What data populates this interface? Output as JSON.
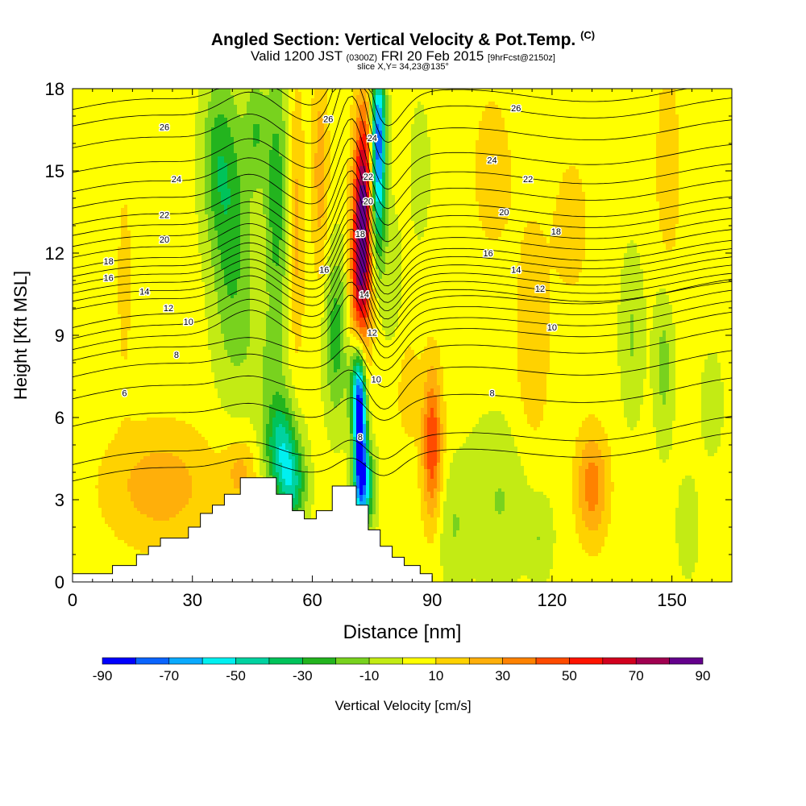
{
  "title": {
    "main": "Angled Section: Vertical Velocity & Pot.Temp.",
    "main_unit": "(C)",
    "valid_prefix": "Valid 1200 JST",
    "valid_zulu": "(0300Z)",
    "valid_date": "FRI 20 Feb 2015",
    "forecast": "[9hrFcst@2150z]",
    "slice": "slice X,Y= 34,23@135°"
  },
  "chart_data": {
    "type": "heatmap",
    "xlabel": "Distance [nm]",
    "ylabel": "Height [Kft MSL]",
    "xlim": [
      0,
      165
    ],
    "ylim": [
      0,
      18
    ],
    "x_ticks": [
      "0",
      "30",
      "60",
      "90",
      "120",
      "150"
    ],
    "y_ticks": [
      "0",
      "3",
      "6",
      "9",
      "12",
      "15",
      "18"
    ],
    "colorbar": {
      "label": "Vertical Velocity [cm/s]",
      "ticks": [
        "-90",
        "-70",
        "-50",
        "-30",
        "-10",
        "10",
        "30",
        "50",
        "70",
        "90"
      ],
      "levels": [
        -90,
        -80,
        -70,
        -60,
        -50,
        -40,
        -30,
        -20,
        -10,
        0,
        10,
        20,
        30,
        40,
        50,
        60,
        70,
        80,
        90
      ],
      "colors": [
        "#0000ff",
        "#0a64ff",
        "#0aaaff",
        "#00f0f0",
        "#00d2a0",
        "#00c35a",
        "#23b41e",
        "#78d21e",
        "#c3eb14",
        "#ffff00",
        "#ffd200",
        "#ffaf0a",
        "#ff8200",
        "#ff4b00",
        "#ff1400",
        "#d2001e",
        "#a00050",
        "#64008c"
      ]
    },
    "contour_field": "Potential Temperature (C)",
    "contour_labels": [
      "6",
      "8",
      "10",
      "12",
      "14",
      "16",
      "18",
      "20",
      "22",
      "24",
      "26"
    ],
    "terrain": [
      [
        0,
        0.3
      ],
      [
        10,
        0.3
      ],
      [
        10,
        0.6
      ],
      [
        16,
        0.6
      ],
      [
        16,
        1.0
      ],
      [
        19,
        1.0
      ],
      [
        19,
        1.3
      ],
      [
        22,
        1.3
      ],
      [
        22,
        1.6
      ],
      [
        26,
        1.6
      ],
      [
        29,
        1.6
      ],
      [
        29,
        2.0
      ],
      [
        32,
        2.0
      ],
      [
        32,
        2.5
      ],
      [
        35,
        2.5
      ],
      [
        35,
        2.8
      ],
      [
        38,
        2.8
      ],
      [
        38,
        3.2
      ],
      [
        42,
        3.2
      ],
      [
        42,
        3.8
      ],
      [
        48,
        3.8
      ],
      [
        51,
        3.8
      ],
      [
        51,
        3.2
      ],
      [
        55,
        3.2
      ],
      [
        55,
        2.6
      ],
      [
        58,
        2.6
      ],
      [
        58,
        2.3
      ],
      [
        61,
        2.3
      ],
      [
        61,
        2.6
      ],
      [
        65,
        2.6
      ],
      [
        65,
        3.5
      ],
      [
        71,
        3.5
      ],
      [
        71,
        2.8
      ],
      [
        74,
        2.8
      ],
      [
        74,
        1.9
      ],
      [
        77,
        1.9
      ],
      [
        77,
        1.3
      ],
      [
        80,
        1.3
      ],
      [
        80,
        0.9
      ],
      [
        83,
        0.9
      ],
      [
        83,
        0.6
      ],
      [
        87,
        0.6
      ],
      [
        87,
        0.3
      ],
      [
        90,
        0.3
      ],
      [
        90,
        0.0
      ],
      [
        165,
        0.0
      ]
    ],
    "velocity_features": [
      {
        "x": 73,
        "z": 14,
        "w": 2.5,
        "h": 3.5,
        "value": 75
      },
      {
        "x": 72,
        "z": 11,
        "w": 2.5,
        "h": 3,
        "value": 45
      },
      {
        "x": 71,
        "z": 8.5,
        "w": 2.5,
        "h": 2,
        "value": 25
      },
      {
        "x": 76.5,
        "z": 16.5,
        "w": 1.8,
        "h": 2.5,
        "value": -75
      },
      {
        "x": 76,
        "z": 13.5,
        "w": 2.2,
        "h": 2.5,
        "value": -45
      },
      {
        "x": 72,
        "z": 5.5,
        "w": 1.5,
        "h": 2.5,
        "value": -85
      },
      {
        "x": 71,
        "z": 7.5,
        "w": 2,
        "h": 2,
        "value": -55
      },
      {
        "x": 73,
        "z": 3.5,
        "w": 2.5,
        "h": 1.5,
        "value": -55
      },
      {
        "x": 52,
        "z": 5,
        "w": 4,
        "h": 1.8,
        "value": -45
      },
      {
        "x": 55,
        "z": 3.5,
        "w": 3.5,
        "h": 1.5,
        "value": -40
      },
      {
        "x": 66,
        "z": 9,
        "w": 3,
        "h": 3,
        "value": -30
      },
      {
        "x": 40,
        "z": 12.5,
        "w": 5,
        "h": 5,
        "value": -28
      },
      {
        "x": 36,
        "z": 15.5,
        "w": 4,
        "h": 3,
        "value": -22
      },
      {
        "x": 51,
        "z": 14,
        "w": 3,
        "h": 5,
        "value": -30
      },
      {
        "x": 46,
        "z": 16.5,
        "w": 2.5,
        "h": 2,
        "value": -20
      },
      {
        "x": 62,
        "z": 15,
        "w": 2,
        "h": 4,
        "value": 22
      },
      {
        "x": 56,
        "z": 13,
        "w": 2,
        "h": 5,
        "value": 20
      },
      {
        "x": 48,
        "z": 8,
        "w": 6,
        "h": 2,
        "value": -10
      },
      {
        "x": 90,
        "z": 5,
        "w": 2.5,
        "h": 2.8,
        "value": 45
      },
      {
        "x": 84,
        "z": 7,
        "w": 3,
        "h": 2,
        "value": 12
      },
      {
        "x": 130,
        "z": 3.5,
        "w": 4,
        "h": 2,
        "value": 32
      },
      {
        "x": 22,
        "z": 3.5,
        "w": 14,
        "h": 2.2,
        "value": 22
      },
      {
        "x": 42,
        "z": 4,
        "w": 4,
        "h": 1.2,
        "value": 18
      },
      {
        "x": 108,
        "z": 3,
        "w": 10,
        "h": 3,
        "value": -15
      },
      {
        "x": 95,
        "z": 2,
        "w": 4,
        "h": 2,
        "value": -12
      },
      {
        "x": 115,
        "z": 8,
        "w": 5,
        "h": 6,
        "value": 12
      },
      {
        "x": 140,
        "z": 9,
        "w": 3,
        "h": 3,
        "value": -15
      },
      {
        "x": 149,
        "z": 15,
        "w": 3,
        "h": 4,
        "value": 14
      },
      {
        "x": 148,
        "z": 8,
        "w": 2.5,
        "h": 3,
        "value": -18
      },
      {
        "x": 160,
        "z": 6.5,
        "w": 3,
        "h": 2,
        "value": -10
      },
      {
        "x": 13,
        "z": 11,
        "w": 2,
        "h": 4,
        "value": 10
      },
      {
        "x": 105,
        "z": 15,
        "w": 5,
        "h": 3,
        "value": 12
      },
      {
        "x": 125,
        "z": 13,
        "w": 5,
        "h": 3,
        "value": 10
      },
      {
        "x": 80,
        "z": 11,
        "w": 3,
        "h": 3,
        "value": -8
      },
      {
        "x": 87,
        "z": 15,
        "w": 3,
        "h": 3,
        "value": -8
      },
      {
        "x": 154,
        "z": 2,
        "w": 3,
        "h": 2,
        "value": -10
      },
      {
        "x": 117,
        "z": 1.5,
        "w": 3,
        "h": 1.5,
        "value": -12
      }
    ],
    "theta_lines": [
      {
        "level": 5.2,
        "z0": 4.4
      },
      {
        "level": 5.6,
        "z0": 5.0
      },
      {
        "level": 6.0,
        "z0": 6.4,
        "label_at": {
          "x": 13,
          "z": 6.9
        }
      },
      {
        "level": 7.0,
        "z0": 7.4
      },
      {
        "level": 8.0,
        "z0": 8.2,
        "label_at": {
          "x": 26,
          "z": 8.3
        },
        "label2_at": {
          "x": 72,
          "z": 5.3
        },
        "label3_at": {
          "x": 105,
          "z": 6.9
        }
      },
      {
        "level": 9.0,
        "z0": 8.8
      },
      {
        "level": 10.0,
        "z0": 9.2,
        "label_at": {
          "x": 29,
          "z": 9.5
        },
        "label2_at": {
          "x": 76,
          "z": 7.4
        },
        "label3_at": {
          "x": 120,
          "z": 9.3
        }
      },
      {
        "level": 11.0,
        "z0": 9.6
      },
      {
        "level": 12.0,
        "z0": 10.0,
        "label_at": {
          "x": 24,
          "z": 10.0
        },
        "label2_at": {
          "x": 75,
          "z": 9.1
        },
        "label3_at": {
          "x": 117,
          "z": 10.7
        }
      },
      {
        "level": 13.0,
        "z0": 10.3
      },
      {
        "level": 14.0,
        "z0": 10.6,
        "label_at": {
          "x": 18,
          "z": 10.6
        },
        "label2_at": {
          "x": 73,
          "z": 10.5
        },
        "label3_at": {
          "x": 111,
          "z": 11.4
        }
      },
      {
        "level": 15.0,
        "z0": 10.9
      },
      {
        "level": 16.0,
        "z0": 11.2,
        "label_at": {
          "x": 9,
          "z": 11.1
        },
        "label2_at": {
          "x": 63,
          "z": 11.4
        },
        "label3_at": {
          "x": 104,
          "z": 12.0
        }
      },
      {
        "level": 17.0,
        "z0": 11.5
      },
      {
        "level": 18.0,
        "z0": 11.8,
        "label_at": {
          "x": 9,
          "z": 11.7
        },
        "label2_at": {
          "x": 72,
          "z": 12.7
        },
        "label3_at": {
          "x": 121,
          "z": 12.8
        }
      },
      {
        "level": 19.0,
        "z0": 12.2
      },
      {
        "level": 20.0,
        "z0": 12.6,
        "label_at": {
          "x": 23,
          "z": 12.5
        },
        "label2_at": {
          "x": 74,
          "z": 13.9
        },
        "label3_at": {
          "x": 108,
          "z": 13.5
        }
      },
      {
        "level": 21.0,
        "z0": 13.0
      },
      {
        "level": 22.0,
        "z0": 13.4,
        "label_at": {
          "x": 23,
          "z": 13.4
        },
        "label2_at": {
          "x": 74,
          "z": 14.8
        },
        "label3_at": {
          "x": 114,
          "z": 14.7
        }
      },
      {
        "level": 23.0,
        "z0": 14.0
      },
      {
        "level": 24.0,
        "z0": 14.6,
        "label_at": {
          "x": 26,
          "z": 14.7
        },
        "label2_at": {
          "x": 75,
          "z": 16.2
        },
        "label3_at": {
          "x": 105,
          "z": 15.4
        }
      },
      {
        "level": 25.0,
        "z0": 15.3
      },
      {
        "level": 26.0,
        "z0": 16.2,
        "label_at": {
          "x": 23,
          "z": 16.6
        },
        "label2_at": {
          "x": 64,
          "z": 16.9
        },
        "label3_at": {
          "x": 111,
          "z": 17.3
        }
      },
      {
        "level": 27.0,
        "z0": 17.0
      },
      {
        "level": 28.0,
        "z0": 17.6
      }
    ]
  }
}
